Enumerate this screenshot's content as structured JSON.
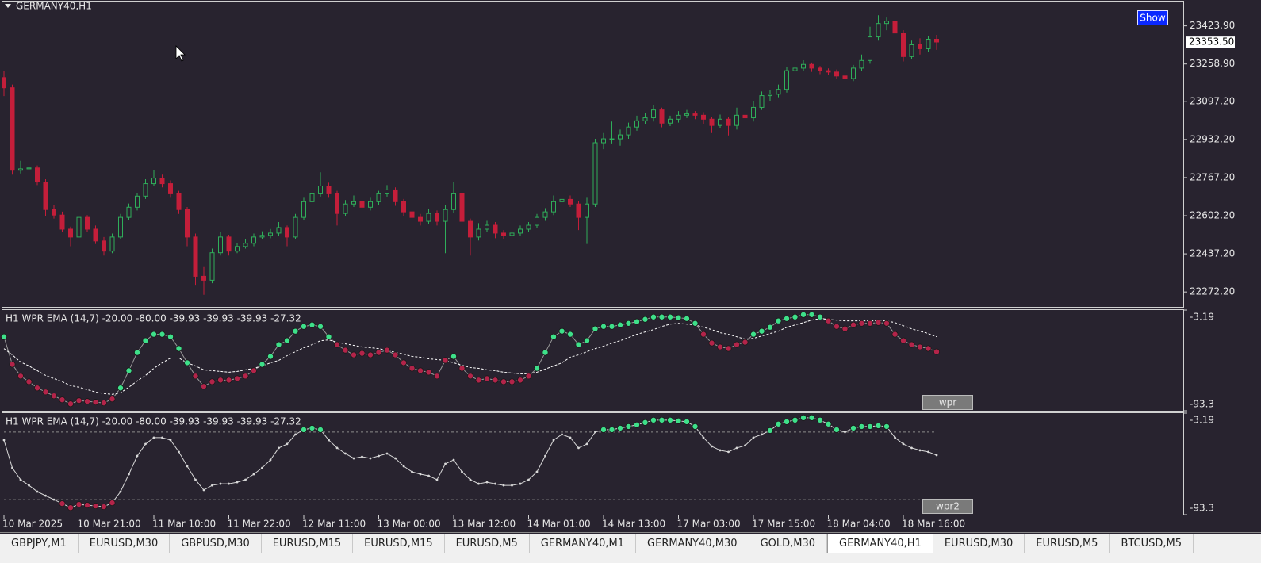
{
  "chart_data": [
    {
      "type": "candlestick",
      "title": "GERMANY40,H1",
      "up_color": "#2fae5a",
      "down_color": "#c41e3a",
      "ylim": [
        22211,
        23529
      ],
      "yticks": [
        {
          "value": 22272.2,
          "label": "22272.20"
        },
        {
          "value": 22437.2,
          "label": "22437.20"
        },
        {
          "value": 22602.2,
          "label": "22602.20"
        },
        {
          "value": 22767.2,
          "label": "22767.20"
        },
        {
          "value": 22932.2,
          "label": "22932.20"
        },
        {
          "value": 23097.2,
          "label": "23097.20"
        },
        {
          "value": 23258.9,
          "label": "23258.90"
        },
        {
          "value": 23423.9,
          "label": "23423.90"
        }
      ],
      "last_price": {
        "value": 23353.5,
        "label": "23353.50"
      },
      "categories": [
        "10 Mar 2025",
        null,
        null,
        null,
        null,
        null,
        null,
        null,
        null,
        "10 Mar 21:00",
        null,
        null,
        null,
        null,
        null,
        null,
        null,
        null,
        "11 Mar 10:00",
        null,
        null,
        null,
        null,
        null,
        null,
        null,
        null,
        "11 Mar 22:00",
        null,
        null,
        null,
        null,
        null,
        null,
        null,
        null,
        "12 Mar 11:00",
        null,
        null,
        null,
        null,
        null,
        null,
        null,
        null,
        "13 Mar 00:00",
        null,
        null,
        null,
        null,
        null,
        null,
        null,
        null,
        "13 Mar 12:00",
        null,
        null,
        null,
        null,
        null,
        null,
        null,
        null,
        "14 Mar 01:00",
        null,
        null,
        null,
        null,
        null,
        null,
        null,
        null,
        "14 Mar 13:00",
        null,
        null,
        null,
        null,
        null,
        null,
        null,
        null,
        "17 Mar 03:00",
        null,
        null,
        null,
        null,
        null,
        null,
        null,
        null,
        "17 Mar 15:00",
        null,
        null,
        null,
        null,
        null,
        null,
        null,
        null,
        "18 Mar 04:00",
        null,
        null,
        null,
        null,
        null,
        null,
        null,
        null,
        "18 Mar 16:00",
        null,
        null,
        null,
        null
      ],
      "ohlc": [
        [
          23200,
          23230,
          23120,
          23156
        ],
        [
          23156,
          23170,
          22780,
          22799
        ],
        [
          22799,
          22840,
          22785,
          22805
        ],
        [
          22805,
          22835,
          22790,
          22809
        ],
        [
          22809,
          22820,
          22735,
          22748
        ],
        [
          22748,
          22760,
          22600,
          22629
        ],
        [
          22629,
          22650,
          22590,
          22605
        ],
        [
          22605,
          22620,
          22530,
          22544
        ],
        [
          22544,
          22555,
          22470,
          22510
        ],
        [
          22510,
          22610,
          22500,
          22595
        ],
        [
          22595,
          22605,
          22530,
          22544
        ],
        [
          22544,
          22560,
          22480,
          22493
        ],
        [
          22493,
          22510,
          22430,
          22449
        ],
        [
          22449,
          22525,
          22440,
          22510
        ],
        [
          22510,
          22610,
          22500,
          22595
        ],
        [
          22595,
          22655,
          22585,
          22639
        ],
        [
          22639,
          22700,
          22625,
          22687
        ],
        [
          22687,
          22760,
          22675,
          22741
        ],
        [
          22741,
          22800,
          22730,
          22765
        ],
        [
          22765,
          22780,
          22725,
          22741
        ],
        [
          22741,
          22755,
          22680,
          22697
        ],
        [
          22697,
          22710,
          22610,
          22629
        ],
        [
          22629,
          22640,
          22470,
          22510
        ],
        [
          22510,
          22525,
          22300,
          22340
        ],
        [
          22340,
          22380,
          22260,
          22323
        ],
        [
          22323,
          22460,
          22310,
          22442
        ],
        [
          22442,
          22530,
          22430,
          22510
        ],
        [
          22510,
          22520,
          22430,
          22449
        ],
        [
          22449,
          22485,
          22440,
          22469
        ],
        [
          22469,
          22500,
          22460,
          22483
        ],
        [
          22483,
          22525,
          22470,
          22510
        ],
        [
          22510,
          22535,
          22500,
          22517
        ],
        [
          22517,
          22545,
          22505,
          22527
        ],
        [
          22527,
          22575,
          22515,
          22551
        ],
        [
          22551,
          22560,
          22470,
          22510
        ],
        [
          22510,
          22610,
          22500,
          22595
        ],
        [
          22595,
          22680,
          22585,
          22663
        ],
        [
          22663,
          22720,
          22650,
          22697
        ],
        [
          22697,
          22790,
          22685,
          22731
        ],
        [
          22731,
          22745,
          22680,
          22697
        ],
        [
          22697,
          22710,
          22560,
          22612
        ],
        [
          22612,
          22670,
          22600,
          22653
        ],
        [
          22653,
          22690,
          22640,
          22663
        ],
        [
          22663,
          22675,
          22620,
          22639
        ],
        [
          22639,
          22680,
          22625,
          22663
        ],
        [
          22663,
          22710,
          22650,
          22697
        ],
        [
          22697,
          22735,
          22685,
          22714
        ],
        [
          22714,
          22725,
          22645,
          22663
        ],
        [
          22663,
          22675,
          22600,
          22619
        ],
        [
          22619,
          22630,
          22580,
          22595
        ],
        [
          22595,
          22610,
          22560,
          22578
        ],
        [
          22578,
          22630,
          22565,
          22612
        ],
        [
          22612,
          22625,
          22560,
          22578
        ],
        [
          22578,
          22650,
          22440,
          22629
        ],
        [
          22629,
          22750,
          22615,
          22697
        ],
        [
          22697,
          22720,
          22560,
          22578
        ],
        [
          22578,
          22590,
          22430,
          22510
        ],
        [
          22510,
          22570,
          22495,
          22544
        ],
        [
          22544,
          22580,
          22530,
          22561
        ],
        [
          22561,
          22575,
          22505,
          22527
        ],
        [
          22527,
          22540,
          22500,
          22517
        ],
        [
          22517,
          22545,
          22505,
          22527
        ],
        [
          22527,
          22560,
          22515,
          22544
        ],
        [
          22544,
          22575,
          22530,
          22561
        ],
        [
          22561,
          22610,
          22550,
          22595
        ],
        [
          22595,
          22635,
          22580,
          22619
        ],
        [
          22619,
          22690,
          22605,
          22663
        ],
        [
          22663,
          22700,
          22650,
          22673
        ],
        [
          22673,
          22690,
          22640,
          22653
        ],
        [
          22653,
          22665,
          22540,
          22595
        ],
        [
          22595,
          22680,
          22480,
          22653
        ],
        [
          22653,
          22935,
          22640,
          22918
        ],
        [
          22918,
          22960,
          22890,
          22935
        ],
        [
          22935,
          23010,
          22915,
          22935
        ],
        [
          22935,
          22975,
          22905,
          22952
        ],
        [
          22952,
          23005,
          22935,
          22986
        ],
        [
          22986,
          23035,
          22970,
          23013
        ],
        [
          23013,
          23045,
          23000,
          23026
        ],
        [
          23026,
          23080,
          23010,
          23060
        ],
        [
          23060,
          23070,
          22985,
          23003
        ],
        [
          23003,
          23035,
          22990,
          23020
        ],
        [
          23020,
          23055,
          23005,
          23037
        ],
        [
          23037,
          23060,
          23025,
          23043
        ],
        [
          23043,
          23055,
          23020,
          23037
        ],
        [
          23037,
          23050,
          23000,
          23020
        ],
        [
          23020,
          23030,
          22960,
          22993
        ],
        [
          22993,
          23040,
          22980,
          23020
        ],
        [
          23020,
          23030,
          22950,
          22993
        ],
        [
          22993,
          23070,
          22975,
          23037
        ],
        [
          23037,
          23050,
          23005,
          23026
        ],
        [
          23026,
          23100,
          23010,
          23071
        ],
        [
          23071,
          23140,
          23060,
          23122
        ],
        [
          23122,
          23145,
          23100,
          23128
        ],
        [
          23128,
          23170,
          23115,
          23149
        ],
        [
          23149,
          23245,
          23135,
          23230
        ],
        [
          23230,
          23260,
          23215,
          23241
        ],
        [
          23241,
          23275,
          23230,
          23257
        ],
        [
          23257,
          23265,
          23225,
          23241
        ],
        [
          23241,
          23250,
          23215,
          23230
        ],
        [
          23230,
          23240,
          23210,
          23224
        ],
        [
          23224,
          23235,
          23195,
          23207
        ],
        [
          23207,
          23215,
          23185,
          23196
        ],
        [
          23196,
          23255,
          23185,
          23241
        ],
        [
          23241,
          23300,
          23230,
          23274
        ],
        [
          23274,
          23420,
          23260,
          23376
        ],
        [
          23376,
          23470,
          23360,
          23434
        ],
        [
          23434,
          23460,
          23405,
          23444
        ],
        [
          23444,
          23465,
          23380,
          23393
        ],
        [
          23393,
          23405,
          23270,
          23291
        ],
        [
          23291,
          23360,
          23280,
          23342
        ],
        [
          23342,
          23370,
          23300,
          23325
        ],
        [
          23325,
          23380,
          23310,
          23366
        ],
        [
          23366,
          23385,
          23320,
          23354
        ]
      ]
    },
    {
      "type": "wpr",
      "header": "H1 WPR  EMA (14,7) -20.00 -80.00 -39.93 -39.93 -39.93 -27.32",
      "button": "wpr",
      "up_color": "#3ee08a",
      "down_color": "#b3244a",
      "line_color": "#9a9a9a",
      "ema_color": "#ffffff",
      "ylim": [
        -93.3,
        -3.19
      ],
      "yticks": [
        -3.19,
        -93.3
      ],
      "values": [
        -27.1,
        -51.8,
        -62.3,
        -67.3,
        -72.9,
        -76.5,
        -80,
        -83.5,
        -87.1,
        -84.2,
        -84.9,
        -85.6,
        -86.3,
        -82.8,
        -72.9,
        -57.4,
        -41.2,
        -30.6,
        -24.9,
        -24.9,
        -27.1,
        -37.6,
        -50.3,
        -62.3,
        -71.5,
        -67.3,
        -65.9,
        -65.9,
        -64.5,
        -62.3,
        -57.4,
        -51.8,
        -44.7,
        -34.1,
        -30.6,
        -22.1,
        -17.9,
        -16.5,
        -17.9,
        -27.1,
        -34.1,
        -39.1,
        -43.3,
        -41.9,
        -43.3,
        -41.2,
        -39.1,
        -43.3,
        -50.3,
        -55.3,
        -57.4,
        -58.8,
        -62.3,
        -48.2,
        -44.7,
        -55.3,
        -62.3,
        -65.9,
        -64.5,
        -65.9,
        -67.3,
        -67.3,
        -65.9,
        -62.3,
        -55.3,
        -41.2,
        -27.1,
        -22.1,
        -24.9,
        -34.1,
        -30.6,
        -20,
        -17.9,
        -17.9,
        -16.5,
        -15.1,
        -13.6,
        -11.5,
        -9.4,
        -9.4,
        -9.4,
        -10.1,
        -10.8,
        -15.1,
        -24.9,
        -32.7,
        -36.2,
        -37.6,
        -34.1,
        -32,
        -24.9,
        -22.1,
        -18.6,
        -12.9,
        -10.8,
        -9.4,
        -7.3,
        -7.3,
        -9.4,
        -12.9,
        -17.9,
        -20,
        -16.5,
        -15.1,
        -15.1,
        -14.4,
        -15.1,
        -24.9,
        -30.6,
        -34.1,
        -36.2,
        -37.6,
        -40.5
      ],
      "ema": [
        -37.7,
        -43.3,
        -49.7,
        -53.2,
        -57.4,
        -61.7,
        -64.5,
        -67.3,
        -70.8,
        -72.2,
        -74.4,
        -76.5,
        -77.9,
        -78.6,
        -77.2,
        -72.2,
        -66.6,
        -61.7,
        -55.3,
        -50.4,
        -46.1,
        -46.1,
        -50.4,
        -53.2,
        -56.7,
        -57.4,
        -58.1,
        -58.8,
        -58.1,
        -56.7,
        -55.3,
        -53.2,
        -50.4,
        -48.2,
        -44,
        -40.5,
        -36.9,
        -34.1,
        -30.6,
        -29.9,
        -32,
        -33.4,
        -34.8,
        -36.2,
        -36.9,
        -37.7,
        -39.1,
        -41.2,
        -42.6,
        -44.7,
        -45.4,
        -46.8,
        -47.5,
        -48.2,
        -50.4,
        -52.5,
        -54.6,
        -55.3,
        -56.7,
        -57.4,
        -58.8,
        -59.5,
        -60.2,
        -60.2,
        -58.8,
        -56,
        -53.2,
        -50.4,
        -45.4,
        -43.3,
        -40.5,
        -37.7,
        -35.5,
        -32.7,
        -30.6,
        -27.8,
        -24.9,
        -22.8,
        -20.7,
        -17.9,
        -15.8,
        -15.1,
        -15.8,
        -16.5,
        -18.6,
        -20.7,
        -23.5,
        -24.9,
        -27.1,
        -29.2,
        -28.5,
        -26.4,
        -24.2,
        -22.1,
        -18.6,
        -16.5,
        -14.4,
        -12.2,
        -10.8,
        -11.5,
        -12.2,
        -12.9,
        -12.9,
        -12.9,
        -12.9,
        -12.9,
        -12.9,
        -14.4,
        -17.2,
        -20,
        -22.1,
        -24.2,
        -27.1
      ]
    },
    {
      "type": "wpr-levels",
      "header": "H1 WPR  EMA (14,7) -20.00 -80.00 -39.93 -39.93 -39.93 -27.32",
      "button": "wpr2",
      "up_color": "#3ee08a",
      "down_color": "#b3244a",
      "line_color": "#d8d8d8",
      "level_color": "#8a8a8a",
      "ylim": [
        -93.3,
        -3.19
      ],
      "yticks": [
        -3.19,
        -93.3
      ],
      "levels": [
        -20,
        -80
      ],
      "values": [
        -27.1,
        -51.8,
        -62.3,
        -67.3,
        -72.9,
        -76.5,
        -80,
        -83.5,
        -87.1,
        -84.2,
        -84.9,
        -85.6,
        -86.3,
        -82.8,
        -72.9,
        -57.4,
        -41.2,
        -30.6,
        -24.9,
        -24.9,
        -27.1,
        -37.6,
        -50.3,
        -62.3,
        -71.5,
        -67.3,
        -65.9,
        -65.9,
        -64.5,
        -62.3,
        -57.4,
        -51.8,
        -44.7,
        -34.1,
        -30.6,
        -22.1,
        -17.9,
        -16.5,
        -17.9,
        -27.1,
        -34.1,
        -39.1,
        -43.3,
        -41.9,
        -43.3,
        -41.2,
        -39.1,
        -43.3,
        -50.3,
        -55.3,
        -57.4,
        -58.8,
        -62.3,
        -48.2,
        -44.7,
        -55.3,
        -62.3,
        -65.9,
        -64.5,
        -65.9,
        -67.3,
        -67.3,
        -65.9,
        -62.3,
        -55.3,
        -41.2,
        -27.1,
        -22.1,
        -24.9,
        -34.1,
        -30.6,
        -20,
        -17.9,
        -17.9,
        -16.5,
        -15.1,
        -13.6,
        -11.5,
        -9.4,
        -9.4,
        -9.4,
        -10.1,
        -10.8,
        -15.1,
        -24.9,
        -32.7,
        -36.2,
        -37.6,
        -34.1,
        -32,
        -24.9,
        -22.1,
        -18.6,
        -12.9,
        -10.8,
        -9.4,
        -7.3,
        -7.3,
        -9.4,
        -12.9,
        -17.9,
        -20,
        -16.5,
        -15.1,
        -15.1,
        -14.4,
        -15.1,
        -24.9,
        -30.6,
        -34.1,
        -36.2,
        -37.6,
        -40.5
      ]
    }
  ],
  "show_button": "Show",
  "tabs": [
    "GBPJPY,M1",
    "EURUSD,M30",
    "GBPUSD,M30",
    "EURUSD,M15",
    "EURUSD,M15",
    "EURUSD,M5",
    "GERMANY40,M1",
    "GERMANY40,M30",
    "GOLD,M30",
    "GERMANY40,H1",
    "EURUSD,M30",
    "EURUSD,M5",
    "BTCUSD,M5"
  ],
  "active_tab": 9
}
